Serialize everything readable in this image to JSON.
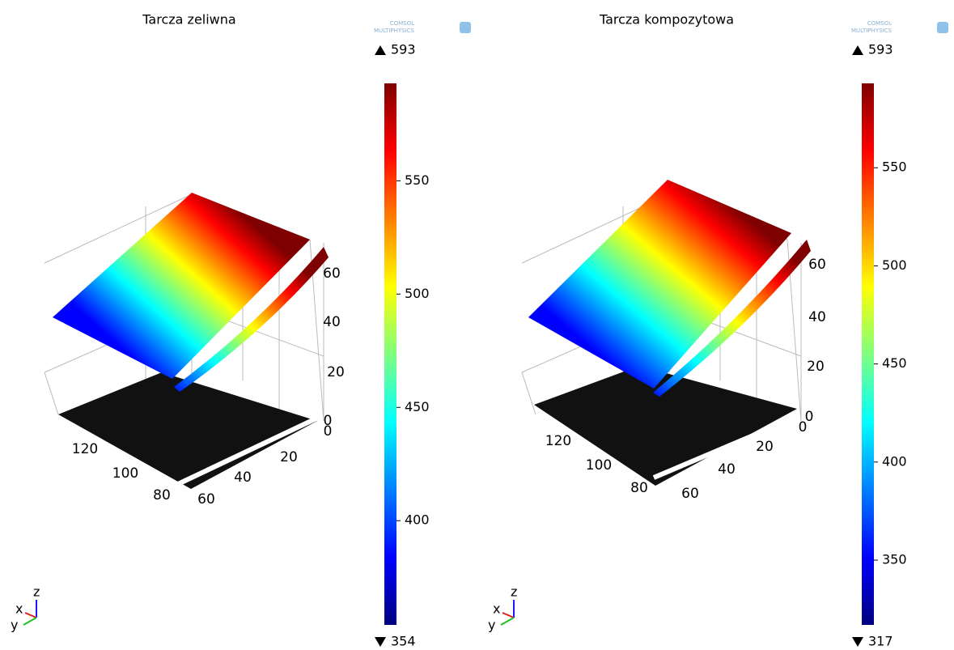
{
  "panels": [
    {
      "title": "Tarcza zeliwna",
      "logo": [
        "COMSOL",
        "MULTIPHYSICS"
      ],
      "colorbar": {
        "max": 593,
        "min": 354,
        "ticks": [
          400,
          450,
          500,
          550
        ]
      },
      "z_ticks": [
        0,
        20,
        40,
        60
      ],
      "x_ticks": [
        0,
        20,
        40,
        60
      ],
      "y_ticks": [
        80,
        100,
        120
      ],
      "triad": [
        "x",
        "y",
        "z"
      ]
    },
    {
      "title": "Tarcza kompozytowa",
      "logo": [
        "COMSOL",
        "MULTIPHYSICS"
      ],
      "colorbar": {
        "max": 593,
        "min": 317,
        "ticks": [
          350,
          400,
          450,
          500,
          550
        ]
      },
      "z_ticks": [
        0,
        20,
        40,
        60
      ],
      "x_ticks": [
        0,
        20,
        40,
        60
      ],
      "y_ticks": [
        80,
        100,
        120
      ],
      "triad": [
        "x",
        "y",
        "z"
      ]
    }
  ]
}
